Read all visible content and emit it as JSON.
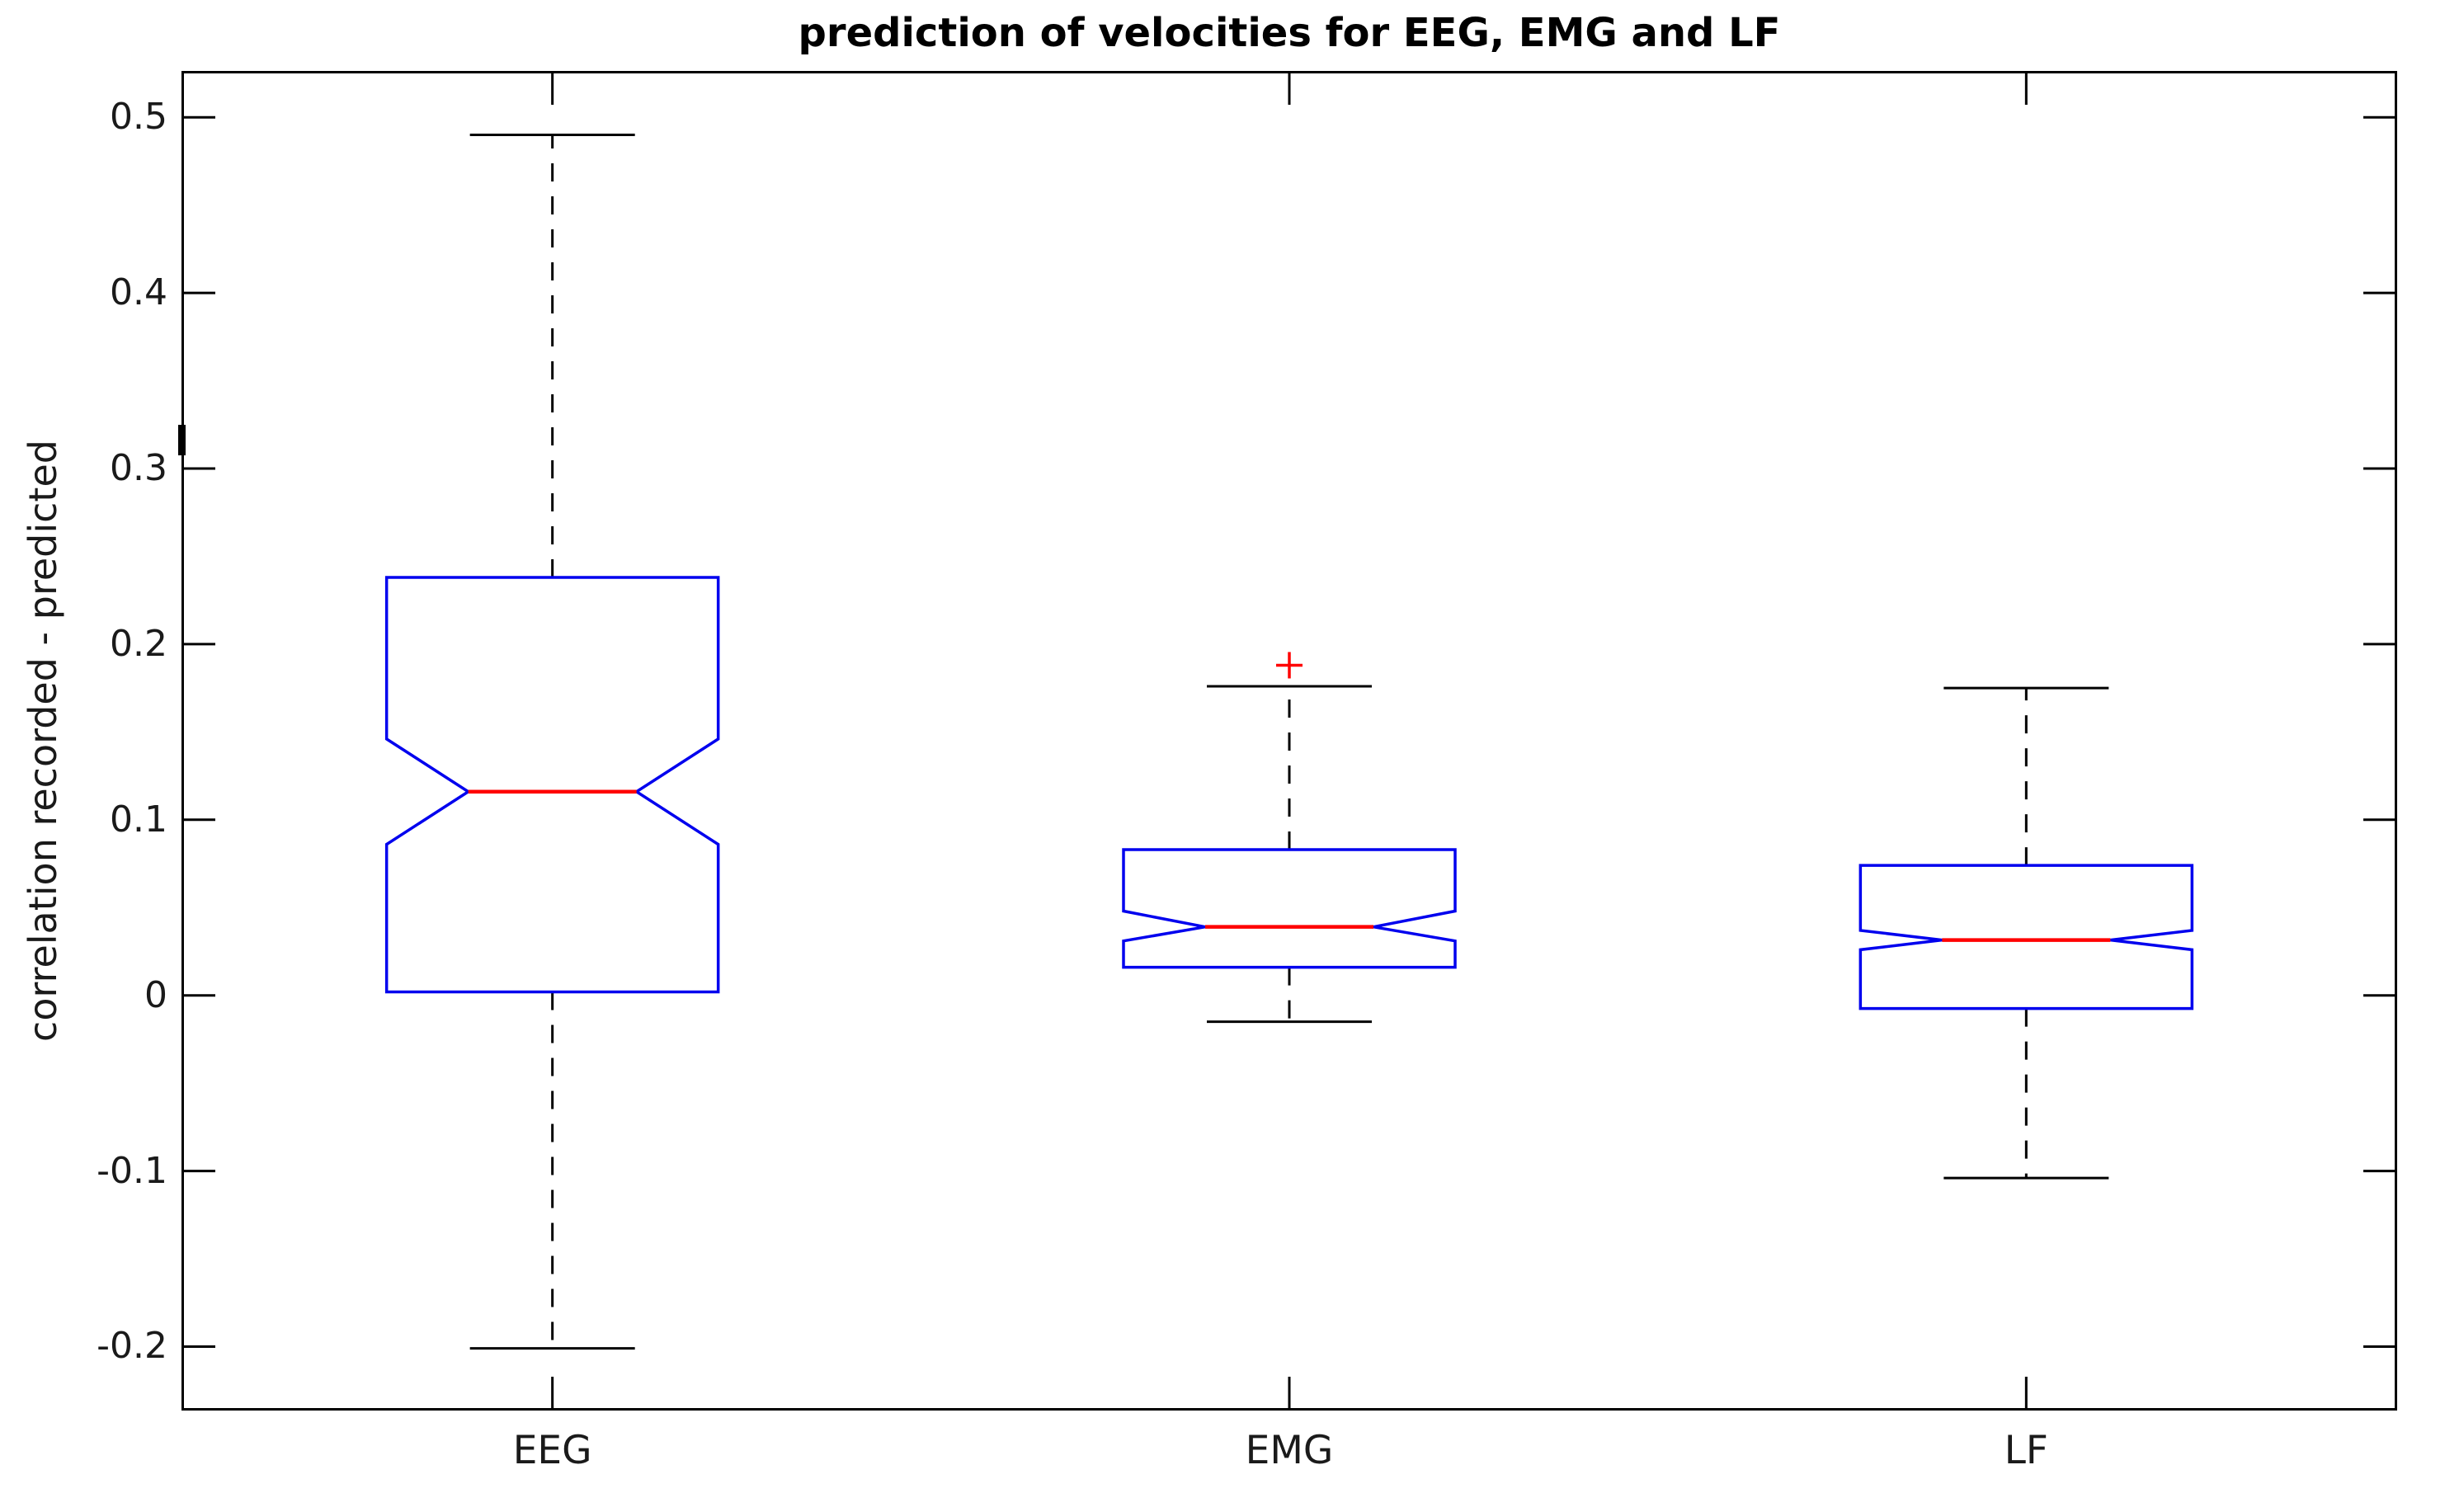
{
  "title": "prediction of velocities for EEG, EMG and LF",
  "ylabel": "correlation recorded - predicted",
  "colors": {
    "box": "#0000ee",
    "median": "#ff0000",
    "outlier": "#ff0000",
    "whisker": "#000000",
    "axis": "#000000",
    "text": "#1a1a1a"
  },
  "chart_data": {
    "type": "boxplot",
    "title": "prediction of velocities for EEG, EMG and LF",
    "xlabel": "",
    "ylabel": "correlation recorded - predicted",
    "categories": [
      "EEG",
      "EMG",
      "LF"
    ],
    "ylim": [
      -0.235,
      0.525
    ],
    "grid": false,
    "notched": true,
    "yticks": [
      {
        "label": "0.5",
        "value": 0.5
      },
      {
        "label": "0.4",
        "value": 0.4
      },
      {
        "label": "0.3",
        "value": 0.3
      },
      {
        "label": "0.2",
        "value": 0.2
      },
      {
        "label": "0.1",
        "value": 0.1
      },
      {
        "label": "0",
        "value": 0
      },
      {
        "label": "-0.1",
        "value": -0.1
      },
      {
        "label": "-0.2",
        "value": -0.2
      }
    ],
    "groups": [
      {
        "label": "EEG",
        "whisker_high": 0.49,
        "q3": 0.238,
        "notch_high": 0.146,
        "median": 0.116,
        "notch_low": 0.086,
        "q1": 0.002,
        "whisker_low": -0.201,
        "outliers": []
      },
      {
        "label": "EMG",
        "whisker_high": 0.176,
        "q3": 0.083,
        "notch_high": 0.048,
        "median": 0.039,
        "notch_low": 0.031,
        "q1": 0.016,
        "whisker_low": -0.015,
        "outliers": [
          0.188
        ]
      },
      {
        "label": "LF",
        "whisker_high": 0.175,
        "q3": 0.074,
        "notch_high": 0.037,
        "median": 0.0315,
        "notch_low": 0.026,
        "q1": -0.0075,
        "whisker_low": -0.104,
        "outliers": []
      }
    ]
  }
}
